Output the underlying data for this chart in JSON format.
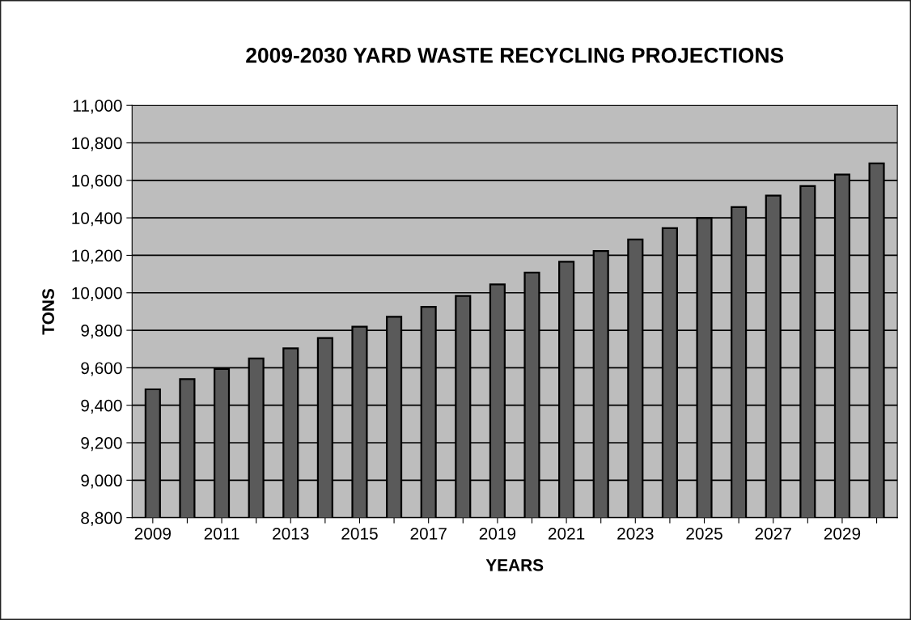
{
  "chart_data": {
    "type": "bar",
    "title": "2009-2030 YARD WASTE RECYCLING PROJECTIONS",
    "xlabel": "YEARS",
    "ylabel": "TONS",
    "categories": [
      "2009",
      null,
      "2011",
      null,
      "2013",
      null,
      "2015",
      null,
      "2017",
      null,
      "2019",
      null,
      "2021",
      null,
      "2023",
      null,
      "2025",
      null,
      "2027",
      null,
      "2029",
      null
    ],
    "values": [
      9485,
      9540,
      9593,
      9650,
      9704,
      9759,
      9819,
      9872,
      9925,
      9983,
      10045,
      10108,
      10166,
      10223,
      10285,
      10345,
      10399,
      10457,
      10519,
      10570,
      10631,
      10691
    ],
    "color": "#5a5a5a",
    "ylim": [
      8800,
      11000
    ],
    "yticks": [
      {
        "value": 8800,
        "label": "8,800"
      },
      {
        "value": 9000,
        "label": "9,000"
      },
      {
        "value": 9200,
        "label": "9,200"
      },
      {
        "value": 9400,
        "label": "9,400"
      },
      {
        "value": 9600,
        "label": "9,600"
      },
      {
        "value": 9800,
        "label": "9,800"
      },
      {
        "value": 10000,
        "label": "10,000"
      },
      {
        "value": 10200,
        "label": "10,200"
      },
      {
        "value": 10400,
        "label": "10,400"
      },
      {
        "value": 10600,
        "label": "10,600"
      },
      {
        "value": 10800,
        "label": "10,800"
      },
      {
        "value": 11000,
        "label": "11,000"
      }
    ],
    "grid": "y",
    "legend": false
  }
}
